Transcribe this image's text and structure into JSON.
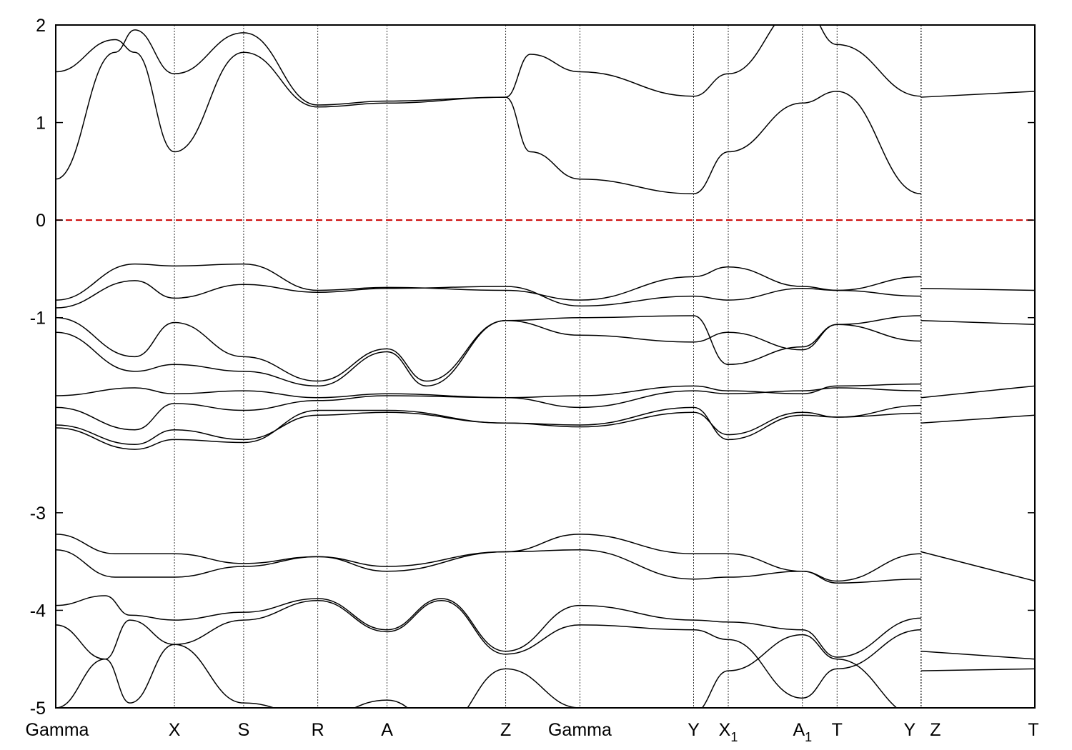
{
  "chart_data": {
    "type": "line",
    "title": "",
    "xlabel": "",
    "ylabel": "",
    "xlim": [
      0,
      9.9
    ],
    "ylim": [
      -5,
      2
    ],
    "y_ticks": [
      2,
      1,
      0,
      -1,
      -3,
      -4,
      -5
    ],
    "grid": false,
    "legend": "none",
    "fermi_level": {
      "y": 0,
      "color": "#cc0000",
      "style": "dashed"
    },
    "kpoints": [
      {
        "label": "Gamma",
        "sub": "",
        "x": 0.0
      },
      {
        "label": "X",
        "sub": "",
        "x": 1.2
      },
      {
        "label": "S",
        "sub": "",
        "x": 1.9
      },
      {
        "label": "R",
        "sub": "",
        "x": 2.65
      },
      {
        "label": "A",
        "sub": "",
        "x": 3.35
      },
      {
        "label": "Z",
        "sub": "",
        "x": 4.55
      },
      {
        "label": "Gamma",
        "sub": "",
        "x": 5.3
      },
      {
        "label": "Y",
        "sub": "",
        "x": 6.45
      },
      {
        "label": "X",
        "sub": "1",
        "x": 6.8
      },
      {
        "label": "A",
        "sub": "1",
        "x": 7.55
      },
      {
        "label": "T",
        "sub": "",
        "x": 7.9
      },
      {
        "label": "Y",
        "sub": "",
        "x": 8.75
      },
      {
        "label": "Z",
        "sub": "",
        "x": 8.75
      },
      {
        "label": "T",
        "sub": "",
        "x": 9.9
      }
    ],
    "series": [
      {
        "x": [
          0,
          0.6,
          0.8,
          1.2,
          1.9,
          2.65,
          3.35,
          4.55
        ],
        "values": [
          1.52,
          1.85,
          1.72,
          0.7,
          1.72,
          1.16,
          1.2,
          1.26
        ]
      },
      {
        "x": [
          0,
          0.6,
          0.8,
          1.2,
          1.9,
          2.65,
          3.35,
          4.55
        ],
        "values": [
          0.42,
          1.72,
          1.95,
          1.5,
          1.92,
          1.18,
          1.22,
          1.26
        ]
      },
      {
        "x": [
          4.55,
          4.8,
          5.3,
          6.45,
          6.8,
          7.55,
          7.9,
          8.75
        ],
        "values": [
          1.26,
          1.7,
          1.52,
          1.27,
          1.5,
          2.2,
          1.8,
          1.27
        ]
      },
      {
        "x": [
          4.55,
          4.8,
          5.3,
          6.45,
          6.8,
          7.55,
          7.9,
          8.75
        ],
        "values": [
          1.26,
          0.7,
          0.42,
          0.27,
          0.7,
          1.2,
          1.32,
          0.27
        ]
      },
      {
        "x": [
          8.75,
          9.9
        ],
        "values": [
          1.26,
          1.32
        ]
      },
      {
        "x": [
          0,
          0.8,
          1.2,
          1.9,
          2.65,
          3.35,
          4.55,
          5.3,
          6.45,
          6.8,
          7.55,
          7.9,
          8.75
        ],
        "values": [
          -0.82,
          -0.45,
          -0.47,
          -0.45,
          -0.72,
          -0.69,
          -0.72,
          -0.82,
          -0.58,
          -0.48,
          -0.68,
          -0.72,
          -0.58
        ]
      },
      {
        "x": [
          0,
          0.8,
          1.2,
          1.9,
          2.65,
          3.35,
          4.55,
          5.3,
          6.45,
          6.8,
          7.55,
          7.9,
          8.75
        ],
        "values": [
          -0.9,
          -0.62,
          -0.8,
          -0.66,
          -0.74,
          -0.7,
          -0.68,
          -0.88,
          -0.78,
          -0.82,
          -0.7,
          -0.72,
          -0.78
        ]
      },
      {
        "x": [
          0,
          0.8,
          1.2,
          1.9,
          2.65,
          3.35,
          3.75,
          4.55,
          5.3,
          6.45,
          6.8,
          7.55,
          7.9,
          8.75
        ],
        "values": [
          -1.0,
          -1.4,
          -1.05,
          -1.4,
          -1.65,
          -1.32,
          -1.65,
          -1.03,
          -1.0,
          -0.98,
          -1.48,
          -1.3,
          -1.07,
          -0.98
        ]
      },
      {
        "x": [
          0,
          0.8,
          1.2,
          1.9,
          2.65,
          3.35,
          3.75,
          4.55,
          5.3,
          6.45,
          6.8,
          7.55,
          7.9,
          8.75
        ],
        "values": [
          -1.15,
          -1.55,
          -1.48,
          -1.55,
          -1.7,
          -1.35,
          -1.7,
          -1.03,
          -1.18,
          -1.25,
          -1.15,
          -1.33,
          -1.07,
          -1.24
        ]
      },
      {
        "x": [
          0,
          0.8,
          1.2,
          1.9,
          2.65,
          3.35,
          4.55,
          5.3,
          6.45,
          6.8,
          7.55,
          7.9,
          8.75
        ],
        "values": [
          -1.8,
          -1.72,
          -1.78,
          -1.75,
          -1.82,
          -1.78,
          -1.82,
          -1.8,
          -1.7,
          -1.75,
          -1.78,
          -1.7,
          -1.68
        ]
      },
      {
        "x": [
          0,
          0.8,
          1.2,
          1.9,
          2.65,
          3.35,
          4.55,
          5.3,
          6.45,
          6.8,
          7.55,
          7.9,
          8.75
        ],
        "values": [
          -1.92,
          -2.15,
          -1.88,
          -1.95,
          -1.85,
          -1.8,
          -1.82,
          -1.92,
          -1.75,
          -1.78,
          -1.75,
          -1.72,
          -1.75
        ]
      },
      {
        "x": [
          0,
          0.8,
          1.2,
          1.9,
          2.65,
          3.35,
          4.55,
          5.3,
          6.45,
          6.8,
          7.55,
          7.9,
          8.75
        ],
        "values": [
          -2.1,
          -2.3,
          -2.15,
          -2.25,
          -2.0,
          -1.97,
          -2.08,
          -2.12,
          -1.97,
          -2.2,
          -1.97,
          -2.02,
          -1.9
        ]
      },
      {
        "x": [
          0,
          0.8,
          1.2,
          1.9,
          2.65,
          3.35,
          4.55,
          5.3,
          6.45,
          6.8,
          7.55,
          7.9,
          8.75
        ],
        "values": [
          -2.13,
          -2.35,
          -2.25,
          -2.28,
          -1.95,
          -1.95,
          -2.08,
          -2.1,
          -1.92,
          -2.25,
          -2.0,
          -2.02,
          -1.98
        ]
      },
      {
        "x": [
          8.75,
          9.9
        ],
        "values": [
          -0.7,
          -0.72
        ]
      },
      {
        "x": [
          8.75,
          9.9
        ],
        "values": [
          -1.03,
          -1.07
        ]
      },
      {
        "x": [
          8.75,
          9.9
        ],
        "values": [
          -1.82,
          -1.7
        ]
      },
      {
        "x": [
          8.75,
          9.9
        ],
        "values": [
          -2.08,
          -2.0
        ]
      },
      {
        "x": [
          0,
          0.6,
          1.2,
          1.9,
          2.65,
          3.35,
          4.55,
          5.3,
          6.45,
          6.8,
          7.55,
          7.9,
          8.75
        ],
        "values": [
          -3.22,
          -3.42,
          -3.42,
          -3.52,
          -3.45,
          -3.55,
          -3.4,
          -3.22,
          -3.42,
          -3.42,
          -3.6,
          -3.7,
          -3.42
        ]
      },
      {
        "x": [
          0,
          0.6,
          1.2,
          1.9,
          2.65,
          3.35,
          4.55,
          5.3,
          6.45,
          6.8,
          7.55,
          7.9,
          8.75
        ],
        "values": [
          -3.38,
          -3.66,
          -3.66,
          -3.55,
          -3.45,
          -3.6,
          -3.4,
          -3.38,
          -3.68,
          -3.66,
          -3.6,
          -3.72,
          -3.68
        ]
      },
      {
        "x": [
          8.75,
          9.9
        ],
        "values": [
          -3.4,
          -3.7
        ]
      },
      {
        "x": [
          0,
          0.5,
          0.75,
          1.2,
          1.9,
          2.65,
          3.35,
          3.9,
          4.55,
          5.3,
          6.45,
          6.8,
          7.55,
          7.9,
          8.75
        ],
        "values": [
          -3.95,
          -3.85,
          -4.05,
          -4.1,
          -4.02,
          -3.88,
          -4.2,
          -3.88,
          -4.42,
          -3.95,
          -4.1,
          -4.12,
          -4.2,
          -4.48,
          -4.08
        ]
      },
      {
        "x": [
          0,
          0.5,
          0.75,
          1.2,
          1.9,
          2.65,
          3.35,
          3.9,
          4.55,
          5.3,
          6.45,
          6.8,
          7.55,
          7.9,
          8.75
        ],
        "values": [
          -4.15,
          -4.5,
          -4.1,
          -4.35,
          -4.1,
          -3.9,
          -4.22,
          -3.9,
          -4.45,
          -4.15,
          -4.2,
          -4.3,
          -4.9,
          -4.6,
          -4.2
        ]
      },
      {
        "x": [
          0,
          0.5,
          0.75,
          1.2,
          1.9,
          2.65,
          3.35,
          3.9,
          4.55,
          5.3,
          6.45,
          6.8,
          7.55,
          7.9,
          8.75
        ],
        "values": [
          -5.0,
          -4.5,
          -4.95,
          -4.35,
          -4.95,
          -5.1,
          -4.92,
          -5.2,
          -4.6,
          -5.0,
          -5.05,
          -4.62,
          -4.25,
          -4.5,
          -5.1
        ]
      },
      {
        "x": [
          8.75,
          9.9
        ],
        "values": [
          -4.42,
          -4.5
        ]
      },
      {
        "x": [
          8.75,
          9.9
        ],
        "values": [
          -4.62,
          -4.6
        ]
      }
    ]
  }
}
